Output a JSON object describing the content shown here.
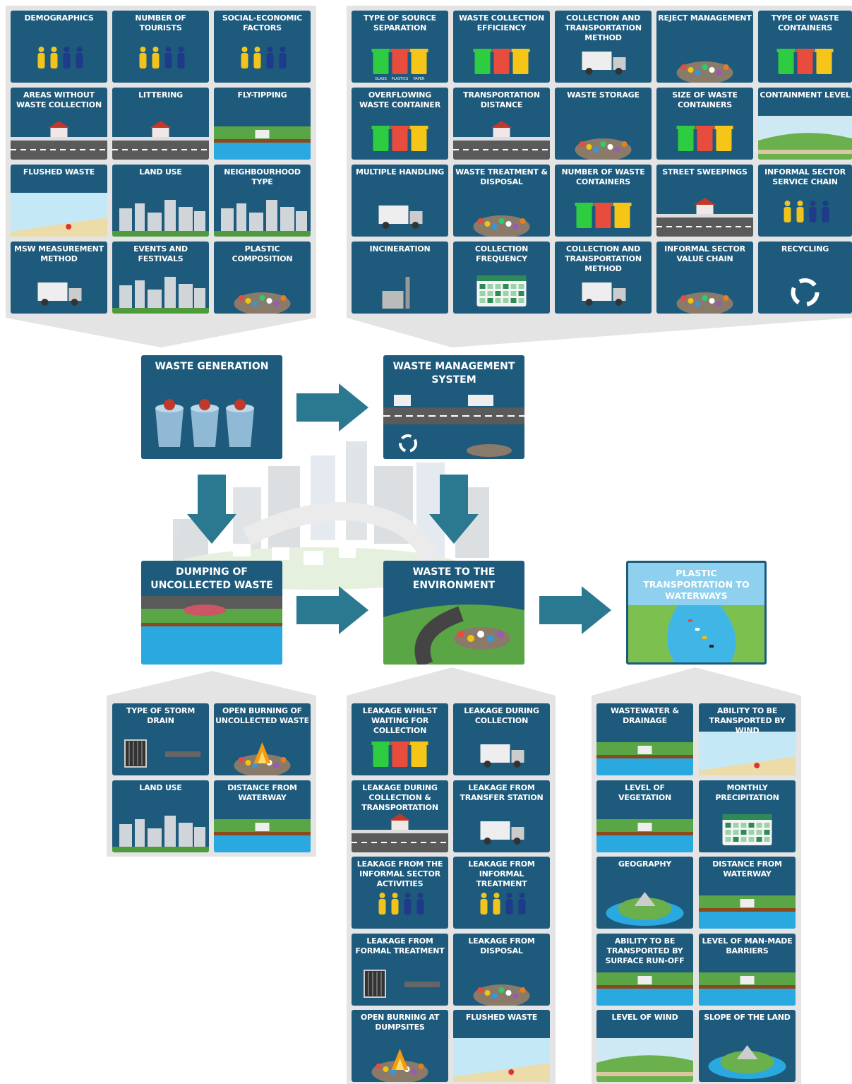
{
  "groups": [
    {
      "tiles": [
        "DEMOGRAPHICS",
        "NUMBER OF TOURISTS",
        "SOCIAL-ECONOMIC FACTORS",
        "AREAS WITHOUT WASTE COLLECTION",
        "LITTERING",
        "FLY-TIPPING",
        "FLUSHED WASTE",
        "LAND USE",
        "NEIGHBOURHOOD TYPE",
        "MSW MEASUREMENT METHOD",
        "EVENTS AND FESTIVALS",
        "PLASTIC COMPOSITION"
      ]
    },
    {
      "tiles": [
        "TYPE OF SOURCE SEPARATION",
        "WASTE COLLECTION EFFICIENCY",
        "COLLECTION AND TRANSPORTATION METHOD",
        "REJECT MANAGEMENT",
        "TYPE OF WASTE CONTAINERS",
        "OVERFLOWING WASTE CONTAINER",
        "TRANSPORTATION DISTANCE",
        "WASTE STORAGE",
        "SIZE OF WASTE CONTAINERS",
        "CONTAINMENT LEVEL",
        "MULTIPLE HANDLING",
        "WASTE TREATMENT & DISPOSAL",
        "NUMBER OF WASTE CONTAINERS",
        "STREET SWEEPINGS",
        "INFORMAL SECTOR SERVICE CHAIN",
        "INCINERATION",
        "COLLECTION FREQUENCY",
        "COLLECTION AND TRANSPORTATION METHOD",
        "INFORMAL SECTOR VALUE CHAIN",
        "RECYCLING"
      ]
    },
    {
      "tiles": [
        "TYPE OF STORM DRAIN",
        "OPEN BURNING OF UNCOLLECTED WASTE",
        "LAND USE",
        "DISTANCE FROM WATERWAY"
      ]
    },
    {
      "tiles": [
        "LEAKAGE WHILST WAITING FOR COLLECTION",
        "LEAKAGE DURING COLLECTION",
        "LEAKAGE DURING COLLECTION & TRANSPORTATION",
        "LEAKAGE FROM TRANSFER STATION",
        "LEAKAGE FROM THE INFORMAL SECTOR ACTIVITIES",
        "LEAKAGE FROM INFORMAL TREATMENT",
        "LEAKAGE FROM FORMAL TREATMENT",
        "LEAKAGE FROM DISPOSAL",
        "OPEN BURNING AT DUMPSITES",
        "FLUSHED WASTE"
      ]
    },
    {
      "tiles": [
        "WASTEWATER & DRAINAGE",
        "ABILITY TO BE TRANSPORTED BY WIND",
        "LEVEL OF VEGETATION",
        "MONTHLY PRECIPITATION",
        "GEOGRAPHY",
        "DISTANCE FROM WATERWAY",
        "ABILITY TO BE TRANSPORTED BY SURFACE RUN-OFF",
        "LEVEL OF MAN-MADE BARRIERS",
        "LEVEL OF WIND",
        "SLOPE OF THE LAND"
      ]
    }
  ],
  "source_separation_labels": [
    "GLASS",
    "PLASTICS",
    "PAPER"
  ],
  "boxes": [
    "WASTE GENERATION",
    "WASTE MANAGEMENT SYSTEM",
    "DUMPING OF UNCOLLECTED WASTE",
    "WASTE TO THE ENVIRONMENT",
    "PLASTIC TRANSPORTATION TO WATERWAYS"
  ]
}
